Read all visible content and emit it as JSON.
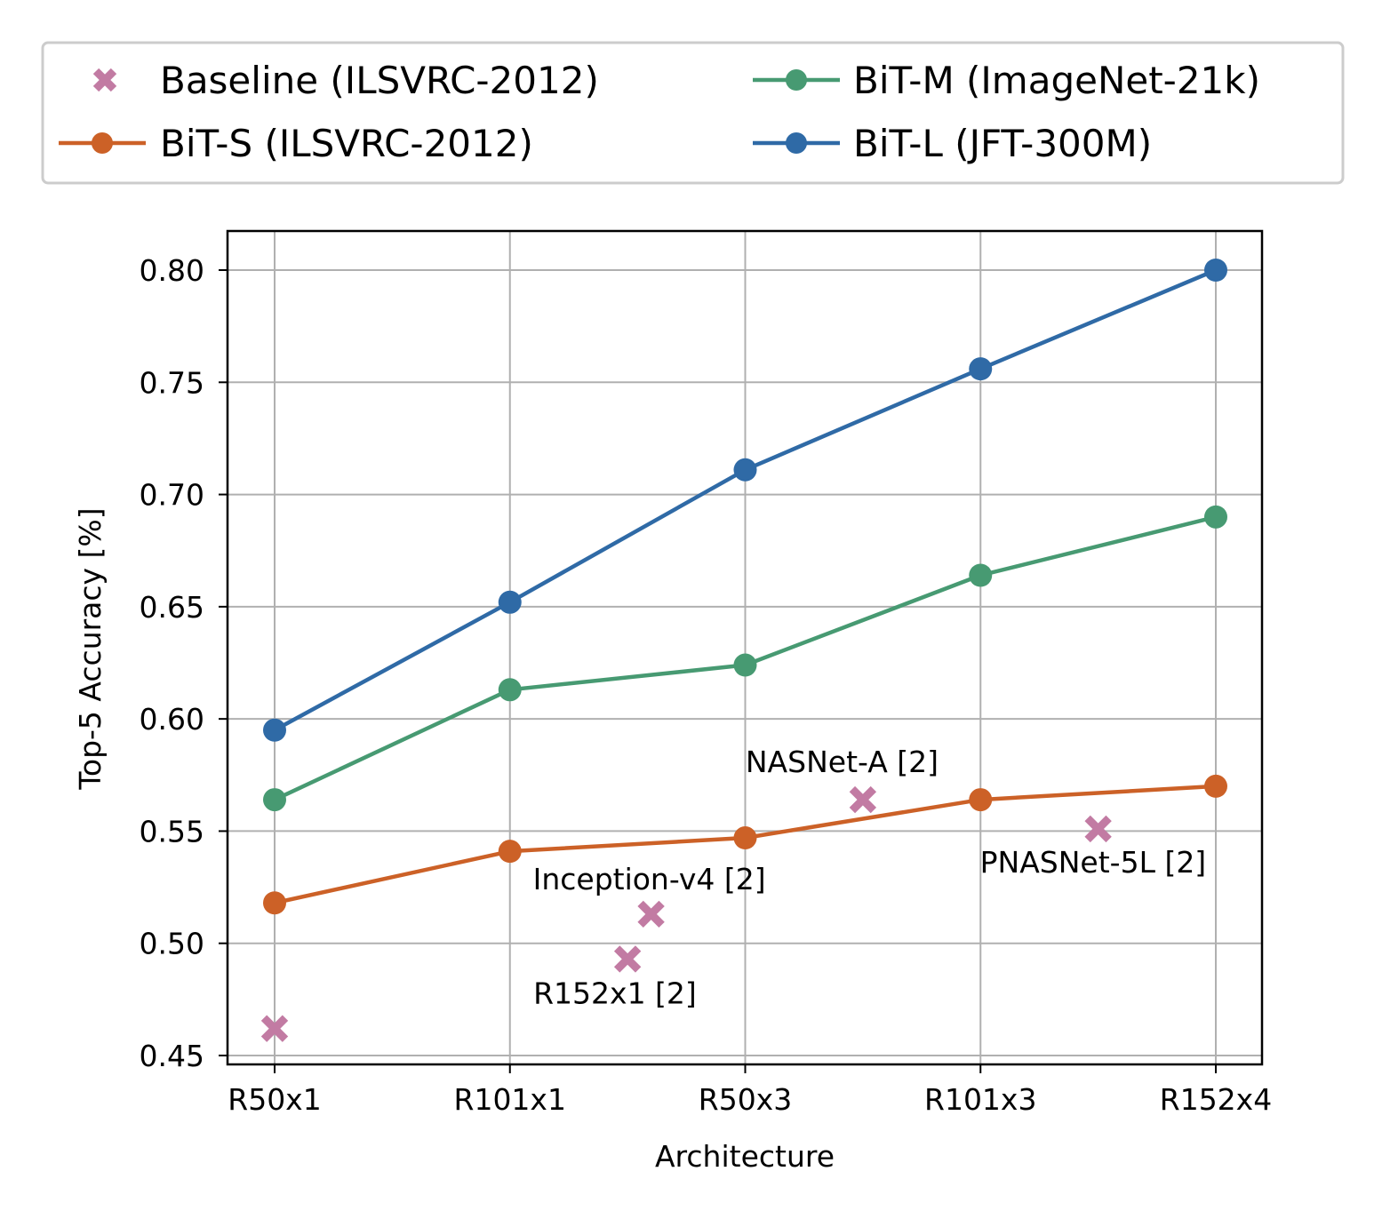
{
  "chart_data": {
    "type": "line",
    "title": "",
    "xlabel": "Architecture",
    "ylabel": "Top-5 Accuracy [%]",
    "categories": [
      "R50x1",
      "R101x1",
      "R50x3",
      "R101x3",
      "R152x4"
    ],
    "ylim": [
      0.447,
      0.818
    ],
    "yticks": [
      0.45,
      0.5,
      0.55,
      0.6,
      0.65,
      0.7,
      0.75,
      0.8
    ],
    "ytick_labels": [
      "0.45",
      "0.50",
      "0.55",
      "0.60",
      "0.65",
      "0.70",
      "0.75",
      "0.80"
    ],
    "grid": true,
    "legend_position": "top, outside plot, two columns",
    "series": [
      {
        "name": "BiT-S (ILSVRC-2012)",
        "color": "#cc6127",
        "values": [
          0.518,
          0.541,
          0.547,
          0.564,
          0.57
        ]
      },
      {
        "name": "BiT-M (ImageNet-21k)",
        "color": "#479a72",
        "values": [
          0.564,
          0.613,
          0.624,
          0.664,
          0.69
        ]
      },
      {
        "name": "BiT-L (JFT-300M)",
        "color": "#2f6aa6",
        "values": [
          0.595,
          0.652,
          0.711,
          0.756,
          0.8
        ]
      }
    ],
    "baseline": {
      "name": "Baseline (ILSVRC-2012)",
      "color": "#c27ba3",
      "marker": "x",
      "points": [
        {
          "x": 0.0,
          "y": 0.462,
          "label": ""
        },
        {
          "x": 1.5,
          "y": 0.493,
          "label": "R152x1 [2]"
        },
        {
          "x": 1.6,
          "y": 0.513,
          "label": "Inception-v4 [2]"
        },
        {
          "x": 2.5,
          "y": 0.564,
          "label": "NASNet-A [2]"
        },
        {
          "x": 3.5,
          "y": 0.551,
          "label": "PNASNet-5L [2]"
        }
      ]
    },
    "legend_order": [
      "Baseline (ILSVRC-2012)",
      "BiT-S (ILSVRC-2012)",
      "BiT-M (ImageNet-21k)",
      "BiT-L (JFT-300M)"
    ]
  }
}
